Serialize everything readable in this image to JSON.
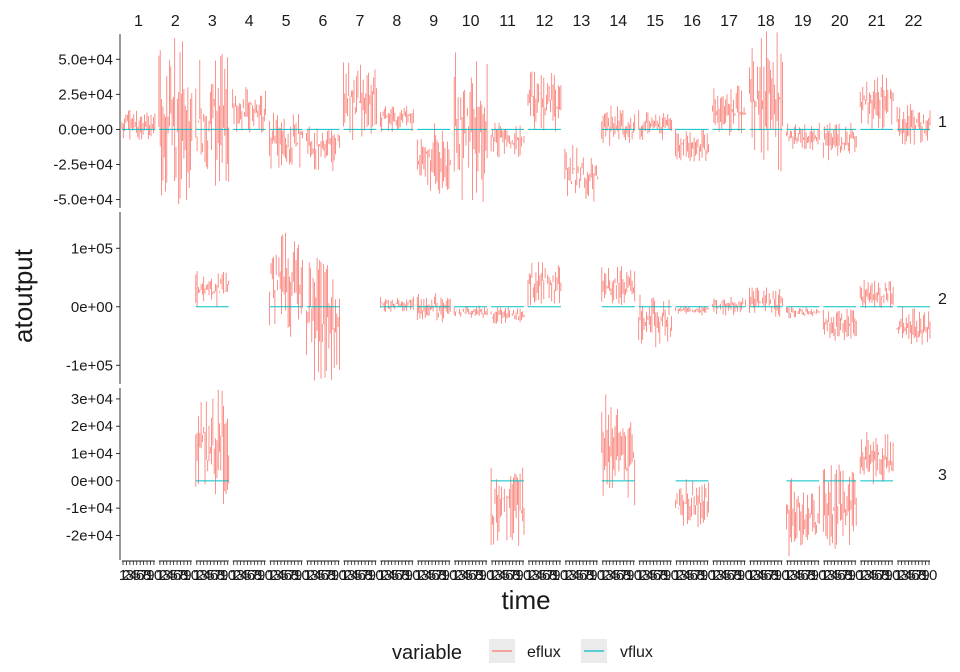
{
  "chart_data": {
    "type": "line",
    "facet_columns": [
      "1",
      "2",
      "3",
      "4",
      "5",
      "6",
      "7",
      "8",
      "9",
      "10",
      "11",
      "12",
      "13",
      "14",
      "15",
      "16",
      "17",
      "18",
      "19",
      "20",
      "21",
      "22"
    ],
    "facet_rows": [
      "1",
      "2",
      "3"
    ],
    "xlabel": "time",
    "ylabel": "atoutput",
    "x_tick_labels": [
      "1",
      "2",
      "3",
      "4",
      "5",
      "6",
      "7",
      "8",
      "9",
      "10"
    ],
    "x_tick_note": "tick labels 1–10 repeated under every facet column; they overlap into an illegible band",
    "legend": {
      "title": "variable",
      "position": "bottom",
      "entries": [
        {
          "name": "eflux",
          "color": "#F8766D"
        },
        {
          "name": "vflux",
          "color": "#00BFC4"
        }
      ]
    },
    "rows": [
      {
        "name": "1",
        "ylim": [
          -56000,
          68000
        ],
        "yticks": [
          -50000,
          -25000,
          0,
          25000,
          50000
        ],
        "ytick_labels": [
          "-5.0e+04",
          "-2.5e+04",
          "0.0e+00",
          "2.5e+04",
          "5.0e+04"
        ],
        "eflux_ranges": [
          [
            -8000,
            14000
          ],
          [
            -55000,
            65000
          ],
          [
            -50000,
            55000
          ],
          [
            -5000,
            32000
          ],
          [
            -30000,
            12000
          ],
          [
            -30000,
            5000
          ],
          [
            -8000,
            48000
          ],
          [
            -2000,
            18000
          ],
          [
            -48000,
            5000
          ],
          [
            -52000,
            55000
          ],
          [
            -20000,
            5000
          ],
          [
            -2000,
            42000
          ],
          [
            -55000,
            -10000
          ],
          [
            -12000,
            18000
          ],
          [
            -8000,
            14000
          ],
          [
            -25000,
            2000
          ],
          [
            -5000,
            32000
          ],
          [
            -30000,
            70000
          ],
          [
            -15000,
            5000
          ],
          [
            -22000,
            5000
          ],
          [
            0,
            40000
          ],
          [
            -12000,
            20000
          ]
        ],
        "vflux_present": [
          true,
          true,
          true,
          true,
          true,
          true,
          true,
          true,
          true,
          true,
          true,
          true,
          false,
          true,
          true,
          true,
          true,
          true,
          true,
          true,
          true,
          true
        ]
      },
      {
        "name": "2",
        "ylim": [
          -132000,
          162000
        ],
        "yticks": [
          -100000,
          0,
          100000
        ],
        "ytick_labels": [
          "-1e+05",
          "0e+00",
          "1e+05"
        ],
        "eflux_ranges": [
          null,
          null,
          [
            0,
            62000
          ],
          null,
          [
            -55000,
            160000
          ],
          [
            -130000,
            95000
          ],
          null,
          [
            -10000,
            18000
          ],
          [
            -30000,
            24000
          ],
          [
            -20000,
            2000
          ],
          [
            -30000,
            0
          ],
          [
            0,
            82000
          ],
          null,
          [
            0,
            70000
          ],
          [
            -75000,
            25000
          ],
          [
            -15000,
            2000
          ],
          [
            -15000,
            20000
          ],
          [
            -20000,
            35000
          ],
          [
            -20000,
            0
          ],
          [
            -60000,
            0
          ],
          [
            -5000,
            48000
          ],
          [
            -70000,
            0
          ]
        ],
        "vflux_present": [
          false,
          false,
          true,
          false,
          true,
          true,
          false,
          true,
          true,
          true,
          true,
          true,
          false,
          true,
          true,
          true,
          true,
          true,
          true,
          true,
          true,
          true
        ]
      },
      {
        "name": "3",
        "ylim": [
          -29000,
          34000
        ],
        "yticks": [
          -20000,
          -10000,
          0,
          10000,
          20000,
          30000
        ],
        "ytick_labels": [
          "-2e+04",
          "-1e+04",
          "0e+00",
          "1e+04",
          "2e+04",
          "3e+04"
        ],
        "eflux_ranges": [
          null,
          null,
          [
            -10000,
            34000
          ],
          null,
          null,
          null,
          null,
          null,
          null,
          null,
          [
            -24000,
            5000
          ],
          null,
          null,
          [
            -10000,
            32000
          ],
          null,
          [
            -17000,
            2000
          ],
          null,
          null,
          [
            -28000,
            1000
          ],
          [
            -25000,
            7000
          ],
          [
            -2000,
            18000
          ],
          null
        ],
        "vflux_present": [
          false,
          false,
          true,
          false,
          false,
          false,
          false,
          false,
          false,
          false,
          true,
          false,
          false,
          true,
          false,
          true,
          false,
          false,
          true,
          true,
          true,
          false
        ]
      }
    ]
  }
}
